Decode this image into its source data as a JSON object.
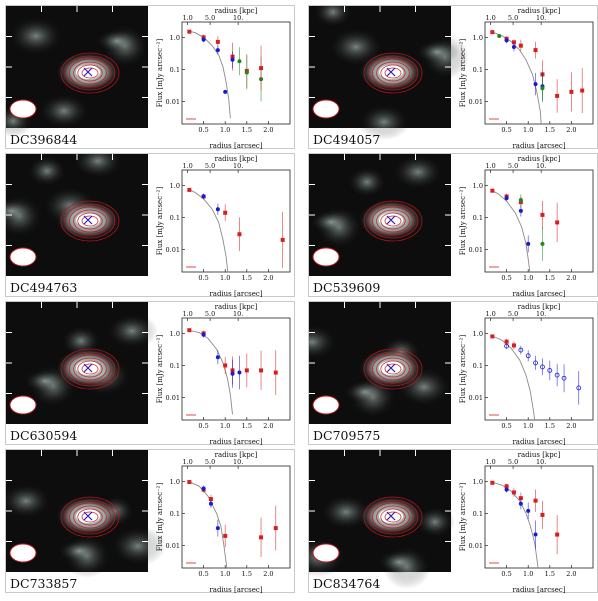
{
  "figure": {
    "x_label": "radius [arcsec]",
    "x2_label": "radius [kpc]",
    "y_label": "Flux [mJy arcsec⁻²]"
  },
  "colors": {
    "red": "#d81e1e",
    "blue": "#1a1ad0",
    "green": "#1c8a1c",
    "model": "#8a8a8a",
    "contour": "#c0161c"
  },
  "chart_data": [
    {
      "type": "scatter",
      "title": "DC396844",
      "log_y": true,
      "xlim": [
        0,
        2.5
      ],
      "ylim": [
        0.002,
        3
      ],
      "x_ticks": [
        "0.5",
        "1.0",
        "1.5",
        "2.0"
      ],
      "x2_ticks": [
        "1.0",
        "5.0",
        "10."
      ],
      "y_ticks": [
        "1.0",
        "0.1",
        "0.01"
      ],
      "model": [
        [
          0.15,
          1.55
        ],
        [
          0.3,
          1.4
        ],
        [
          0.5,
          1.0
        ],
        [
          0.7,
          0.55
        ],
        [
          0.85,
          0.28
        ],
        [
          0.95,
          0.12
        ],
        [
          1.02,
          0.04
        ],
        [
          1.08,
          0.012
        ],
        [
          1.12,
          0.003
        ]
      ],
      "series": [
        {
          "color": "red",
          "marker": "square",
          "x": [
            0.17,
            0.5,
            0.83,
            1.17,
            1.5
          ],
          "y": [
            1.5,
            1.0,
            0.72,
            0.25,
            0.09
          ],
          "err": [
            0.05,
            0.1,
            0.2,
            0.5,
            0.6
          ]
        },
        {
          "color": "blue",
          "marker": "circle",
          "x": [
            0.5,
            0.83,
            1.0,
            1.17
          ],
          "y": [
            0.85,
            0.4,
            0.02,
            0.2
          ],
          "err": [
            0.1,
            0.15,
            0,
            0.3
          ]
        },
        {
          "color": "green",
          "marker": "circle",
          "x": [
            1.33,
            1.5,
            1.83
          ],
          "y": [
            0.18,
            0.08,
            0.05
          ],
          "err": [
            0.5,
            0.6,
            0.8
          ]
        },
        {
          "color": "red",
          "marker": "square",
          "x": [
            1.83
          ],
          "y": [
            0.11
          ],
          "err": [
            0.8
          ]
        }
      ]
    },
    {
      "type": "scatter",
      "title": "DC494057",
      "log_y": true,
      "xlim": [
        0,
        2.5
      ],
      "ylim": [
        0.002,
        3
      ],
      "x_ticks": [
        "0.5",
        "1.0",
        "1.5",
        "2.0"
      ],
      "x2_ticks": [
        "1.0",
        "5.0",
        "10."
      ],
      "y_ticks": [
        "1.0",
        "0.1",
        "0.01"
      ],
      "model": [
        [
          0.15,
          1.5
        ],
        [
          0.4,
          1.1
        ],
        [
          0.6,
          0.75
        ],
        [
          0.8,
          0.4
        ],
        [
          0.95,
          0.2
        ],
        [
          1.1,
          0.07
        ],
        [
          1.2,
          0.02
        ],
        [
          1.28,
          0.005
        ],
        [
          1.3,
          0.002
        ]
      ],
      "series": [
        {
          "color": "red",
          "marker": "square",
          "x": [
            0.17,
            0.5,
            0.67,
            0.83,
            1.17,
            1.33,
            1.67,
            2.0,
            2.25
          ],
          "y": [
            1.45,
            0.9,
            0.7,
            0.55,
            0.4,
            0.07,
            0.015,
            0.02,
            0.022
          ],
          "err": [
            0.05,
            0.1,
            0.1,
            0.2,
            0.3,
            0.5,
            0.6,
            0.7,
            0.8
          ]
        },
        {
          "color": "blue",
          "marker": "circle",
          "x": [
            0.5,
            0.67,
            1.17,
            1.33
          ],
          "y": [
            0.8,
            0.5,
            0.035,
            0.03
          ],
          "err": [
            0.1,
            0.15,
            0.4,
            0.5
          ]
        },
        {
          "color": "green",
          "marker": "circle",
          "x": [
            0.33,
            1.33
          ],
          "y": [
            1.1,
            0.026
          ],
          "err": [
            0.05,
            0.5
          ]
        }
      ]
    },
    {
      "type": "scatter",
      "title": "DC494763",
      "log_y": true,
      "xlim": [
        0,
        2.5
      ],
      "ylim": [
        0.002,
        3
      ],
      "x_ticks": [
        "0.5",
        "1.0",
        "1.5",
        "2.0"
      ],
      "x2_ticks": [
        "1.0",
        "5.0",
        "10."
      ],
      "y_ticks": [
        "1.0",
        "0.1",
        "0.01"
      ],
      "model": [
        [
          0.15,
          0.75
        ],
        [
          0.3,
          0.6
        ],
        [
          0.5,
          0.38
        ],
        [
          0.7,
          0.18
        ],
        [
          0.85,
          0.07
        ],
        [
          0.95,
          0.02
        ],
        [
          1.02,
          0.006
        ],
        [
          1.06,
          0.002
        ]
      ],
      "series": [
        {
          "color": "red",
          "marker": "square",
          "x": [
            0.17,
            0.5,
            1.0,
            1.33,
            2.33
          ],
          "y": [
            0.72,
            0.45,
            0.14,
            0.03,
            0.02
          ],
          "err": [
            0.05,
            0.1,
            0.3,
            0.6,
            1.0
          ]
        },
        {
          "color": "blue",
          "marker": "circle",
          "x": [
            0.5,
            0.83
          ],
          "y": [
            0.45,
            0.18
          ],
          "err": [
            0.1,
            0.2
          ]
        }
      ]
    },
    {
      "type": "scatter",
      "title": "DC539609",
      "log_y": true,
      "xlim": [
        0,
        2.5
      ],
      "ylim": [
        0.002,
        3
      ],
      "x_ticks": [
        "0.5",
        "1.0",
        "1.5",
        "2.0"
      ],
      "x2_ticks": [
        "1.0",
        "5.0",
        "10."
      ],
      "y_ticks": [
        "1.0",
        "0.1",
        "0.01"
      ],
      "model": [
        [
          0.15,
          0.7
        ],
        [
          0.3,
          0.55
        ],
        [
          0.5,
          0.32
        ],
        [
          0.7,
          0.14
        ],
        [
          0.85,
          0.05
        ],
        [
          0.95,
          0.015
        ],
        [
          1.0,
          0.005
        ],
        [
          1.04,
          0.002
        ]
      ],
      "series": [
        {
          "color": "red",
          "marker": "square",
          "x": [
            0.17,
            0.5,
            0.83,
            1.33,
            1.67
          ],
          "y": [
            0.68,
            0.45,
            0.3,
            0.12,
            0.07
          ],
          "err": [
            0.05,
            0.1,
            0.2,
            0.5,
            0.7
          ]
        },
        {
          "color": "blue",
          "marker": "circle",
          "x": [
            0.5,
            0.83,
            1.0
          ],
          "y": [
            0.4,
            0.16,
            0.015
          ],
          "err": [
            0.1,
            0.2,
            0.3
          ]
        },
        {
          "color": "green",
          "marker": "circle",
          "x": [
            0.83,
            1.33
          ],
          "y": [
            0.35,
            0.015
          ],
          "err": [
            0.2,
            0.6
          ]
        }
      ]
    },
    {
      "type": "scatter",
      "title": "DC630594",
      "log_y": true,
      "xlim": [
        0,
        2.5
      ],
      "ylim": [
        0.002,
        3
      ],
      "x_ticks": [
        "0.5",
        "1.0",
        "1.5",
        "2.0"
      ],
      "x2_ticks": [
        "1.0",
        "5.0",
        "10."
      ],
      "y_ticks": [
        "1.0",
        "0.1",
        "0.01"
      ],
      "model": [
        [
          0.15,
          1.25
        ],
        [
          0.4,
          1.05
        ],
        [
          0.6,
          0.7
        ],
        [
          0.8,
          0.32
        ],
        [
          0.95,
          0.12
        ],
        [
          1.05,
          0.04
        ],
        [
          1.12,
          0.012
        ],
        [
          1.17,
          0.003
        ]
      ],
      "series": [
        {
          "color": "red",
          "marker": "square",
          "x": [
            0.17,
            0.5,
            1.0,
            1.17,
            1.5,
            1.83,
            2.17
          ],
          "y": [
            1.25,
            1.0,
            0.1,
            0.07,
            0.07,
            0.07,
            0.06
          ],
          "err": [
            0.05,
            0.1,
            0.3,
            0.5,
            0.6,
            0.7,
            0.8
          ]
        },
        {
          "color": "blue",
          "marker": "circle",
          "x": [
            0.5,
            0.83,
            1.17,
            1.33
          ],
          "y": [
            0.9,
            0.18,
            0.055,
            0.06
          ],
          "err": [
            0.1,
            0.25,
            0.5,
            0.6
          ]
        }
      ]
    },
    {
      "type": "scatter",
      "title": "DC709575",
      "log_y": true,
      "xlim": [
        0,
        2.5
      ],
      "ylim": [
        0.002,
        3
      ],
      "x_ticks": [
        "0.5",
        "1.0",
        "1.5",
        "2.0"
      ],
      "x2_ticks": [
        "1.0",
        "5.0",
        "10."
      ],
      "y_ticks": [
        "1.0",
        "0.1",
        "0.01"
      ],
      "model": [
        [
          0.15,
          0.85
        ],
        [
          0.4,
          0.6
        ],
        [
          0.6,
          0.35
        ],
        [
          0.8,
          0.15
        ],
        [
          0.95,
          0.05
        ],
        [
          1.05,
          0.015
        ],
        [
          1.12,
          0.004
        ],
        [
          1.15,
          0.002
        ]
      ],
      "series": [
        {
          "color": "red",
          "marker": "square",
          "x": [
            0.17,
            0.5,
            0.67
          ],
          "y": [
            0.8,
            0.55,
            0.42
          ],
          "err": [
            0.05,
            0.1,
            0.15
          ]
        },
        {
          "color": "blue",
          "marker": "open_circle",
          "x": [
            0.5,
            0.83,
            1.0,
            1.17,
            1.33,
            1.5,
            1.67,
            1.83,
            2.17
          ],
          "y": [
            0.4,
            0.3,
            0.2,
            0.12,
            0.09,
            0.07,
            0.05,
            0.04,
            0.02
          ],
          "err": [
            0.1,
            0.15,
            0.2,
            0.25,
            0.3,
            0.35,
            0.4,
            0.5,
            0.6
          ]
        }
      ]
    },
    {
      "type": "scatter",
      "title": "DC733857",
      "log_y": true,
      "xlim": [
        0,
        2.5
      ],
      "ylim": [
        0.002,
        3
      ],
      "x_ticks": [
        "0.5",
        "1.0",
        "1.5",
        "2.0"
      ],
      "x2_ticks": [
        "1.0",
        "5.0",
        "10."
      ],
      "y_ticks": [
        "1.0",
        "0.1",
        "0.01"
      ],
      "model": [
        [
          0.15,
          1.0
        ],
        [
          0.4,
          0.7
        ],
        [
          0.6,
          0.35
        ],
        [
          0.8,
          0.1
        ],
        [
          0.9,
          0.04
        ],
        [
          0.97,
          0.01
        ],
        [
          1.02,
          0.003
        ],
        [
          1.04,
          0.002
        ]
      ],
      "series": [
        {
          "color": "red",
          "marker": "square",
          "x": [
            0.17,
            0.5,
            0.67,
            1.0,
            1.83,
            2.17
          ],
          "y": [
            0.95,
            0.55,
            0.28,
            0.02,
            0.018,
            0.035
          ],
          "err": [
            0.05,
            0.1,
            0.15,
            0.4,
            0.7,
            0.8
          ]
        },
        {
          "color": "blue",
          "marker": "circle",
          "x": [
            0.5,
            0.67,
            0.83
          ],
          "y": [
            0.6,
            0.2,
            0.035
          ],
          "err": [
            0.1,
            0.15,
            0.3
          ]
        }
      ]
    },
    {
      "type": "scatter",
      "title": "DC834764",
      "log_y": true,
      "xlim": [
        0,
        2.5
      ],
      "ylim": [
        0.002,
        3
      ],
      "x_ticks": [
        "0.5",
        "1.0",
        "1.5",
        "2.0"
      ],
      "x2_ticks": [
        "1.0",
        "5.0",
        "10."
      ],
      "y_ticks": [
        "1.0",
        "0.1",
        "0.01"
      ],
      "model": [
        [
          0.15,
          0.95
        ],
        [
          0.4,
          0.75
        ],
        [
          0.6,
          0.5
        ],
        [
          0.8,
          0.25
        ],
        [
          0.95,
          0.1
        ],
        [
          1.05,
          0.04
        ],
        [
          1.15,
          0.012
        ],
        [
          1.2,
          0.004
        ],
        [
          1.23,
          0.002
        ]
      ],
      "series": [
        {
          "color": "red",
          "marker": "square",
          "x": [
            0.17,
            0.5,
            0.67,
            0.83,
            1.17,
            1.33,
            1.67
          ],
          "y": [
            0.9,
            0.7,
            0.45,
            0.3,
            0.25,
            0.09,
            0.022
          ],
          "err": [
            0.05,
            0.1,
            0.15,
            0.2,
            0.4,
            0.5,
            0.7
          ]
        },
        {
          "color": "blue",
          "marker": "circle",
          "x": [
            0.5,
            0.83,
            1.0,
            1.17
          ],
          "y": [
            0.55,
            0.2,
            0.12,
            0.022
          ],
          "err": [
            0.1,
            0.2,
            0.3,
            0.5
          ]
        }
      ]
    }
  ]
}
